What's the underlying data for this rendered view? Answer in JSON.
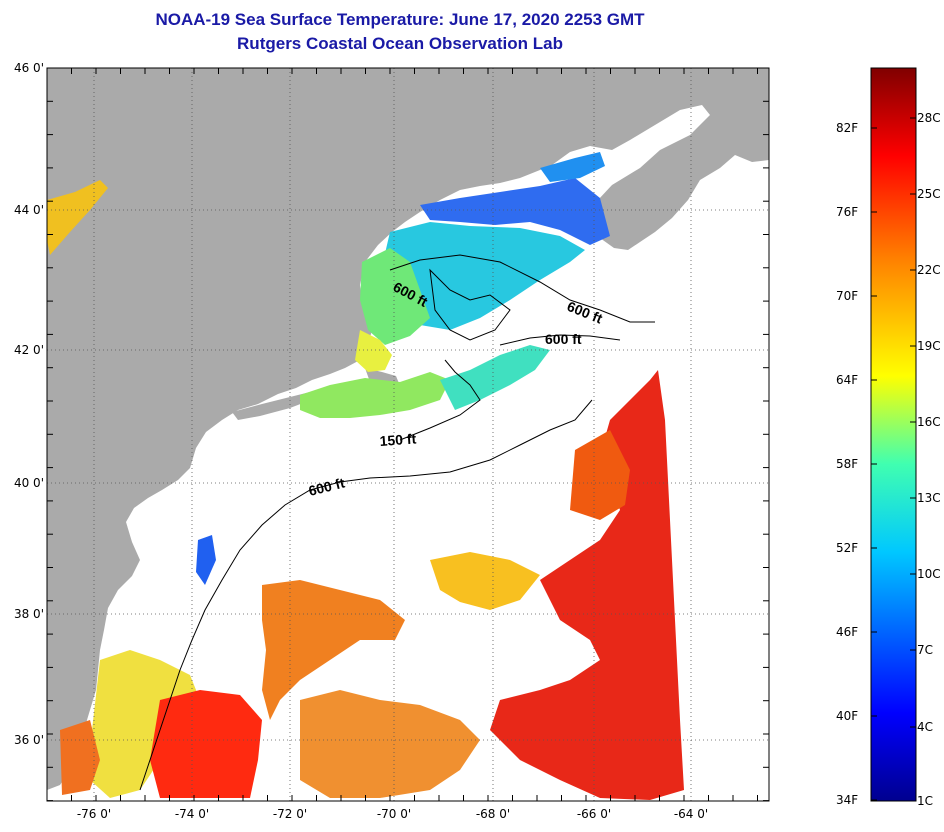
{
  "title": "NOAA-19 Sea Surface Temperature:  June 17, 2020 2253 GMT",
  "subtitle": "Rutgers Coastal Ocean Observation Lab",
  "lat_ticks": [
    "46 0'",
    "44 0'",
    "42 0'",
    "40 0'",
    "38 0'",
    "36 0'"
  ],
  "lon_ticks": [
    "-76 0'",
    "-74 0'",
    "-72 0'",
    "-70 0'",
    "-68 0'",
    "-66 0'",
    "-64 0'"
  ],
  "contour_labels": [
    "600 ft",
    "600 ft",
    "600 ft",
    "150 ft",
    "600 ft"
  ],
  "colorbar": {
    "fahrenheit": [
      "82F",
      "76F",
      "70F",
      "64F",
      "58F",
      "52F",
      "46F",
      "40F",
      "34F"
    ],
    "celsius": [
      "28C",
      "25C",
      "22C",
      "19C",
      "16C",
      "13C",
      "10C",
      "7C",
      "4C",
      "1C"
    ]
  },
  "colors": {
    "land": "#aaaaaa",
    "no_data": "#ffffff",
    "title": "#1a1aa6",
    "scale_cold": "#00008f",
    "scale_cool": "#0080ff",
    "scale_mid": "#00ffff",
    "scale_warm": "#ffff00",
    "scale_hot": "#ff0000",
    "scale_max": "#800000"
  }
}
